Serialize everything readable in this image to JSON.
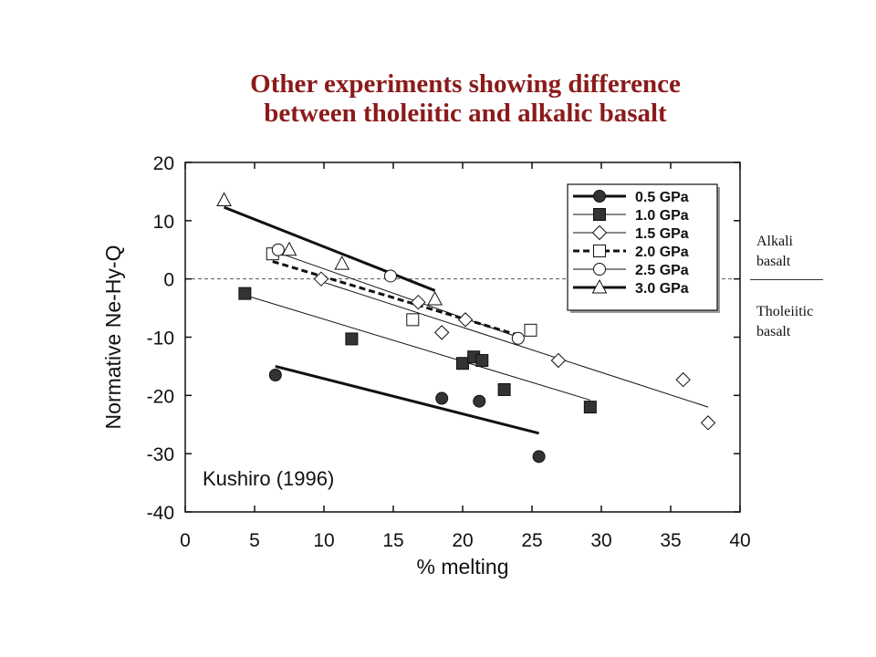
{
  "slide_title": {
    "line1": "Other experiments showing difference",
    "line2": "between tholeiitic and alkalic basalt"
  },
  "side_labels": {
    "upper": [
      "Alkali",
      "basalt"
    ],
    "lower": [
      "Tholeiitic",
      "basalt"
    ]
  },
  "chart_data": {
    "type": "scatter",
    "title": "",
    "xlabel": "% melting",
    "ylabel": "Normative Ne-Hy-Q",
    "xlim": [
      0,
      40
    ],
    "ylim": [
      -40,
      20
    ],
    "xticks": [
      0,
      5,
      10,
      15,
      20,
      25,
      30,
      35,
      40
    ],
    "yticks": [
      20,
      10,
      0,
      -10,
      -20,
      -30,
      -40
    ],
    "reference_line": {
      "y": 0,
      "style": "dashed"
    },
    "annotation": "Kushiro (1996)",
    "legend_position": "top-right",
    "grid": false,
    "series": [
      {
        "name": "0.5 GPa",
        "marker": "circle",
        "fill": "filled",
        "line": "thick-solid",
        "points": [
          [
            6.5,
            -16.5
          ],
          [
            18.5,
            -20.5
          ],
          [
            21.2,
            -21
          ],
          [
            25.5,
            -30.5
          ]
        ],
        "fit": [
          [
            6.5,
            -15
          ],
          [
            25.5,
            -26.5
          ]
        ]
      },
      {
        "name": "1.0 GPa",
        "marker": "square",
        "fill": "filled",
        "line": "thin-solid",
        "points": [
          [
            4.3,
            -2.5
          ],
          [
            12,
            -10.3
          ],
          [
            20,
            -14.5
          ],
          [
            20.8,
            -13.4
          ],
          [
            21.4,
            -14
          ],
          [
            23,
            -19
          ],
          [
            29.2,
            -22
          ]
        ],
        "fit": [
          [
            4.3,
            -2.8
          ],
          [
            29.2,
            -20.8
          ]
        ]
      },
      {
        "name": "1.5 GPa",
        "marker": "diamond",
        "fill": "open",
        "line": "thin-solid",
        "points": [
          [
            9.8,
            0
          ],
          [
            16.8,
            -4
          ],
          [
            18.5,
            -9.2
          ],
          [
            20.2,
            -7
          ],
          [
            26.9,
            -14
          ],
          [
            35.9,
            -17.3
          ],
          [
            37.7,
            -24.7
          ]
        ],
        "fit": [
          [
            9.5,
            -0.2
          ],
          [
            37.7,
            -22
          ]
        ]
      },
      {
        "name": "2.0 GPa",
        "marker": "square",
        "fill": "open",
        "line": "thick-dashed",
        "points": [
          [
            6.3,
            4.3
          ],
          [
            16.4,
            -7
          ],
          [
            24.9,
            -8.8
          ]
        ],
        "fit": [
          [
            6.3,
            3
          ],
          [
            24.2,
            -9.8
          ]
        ]
      },
      {
        "name": "2.5 GPa",
        "marker": "circle",
        "fill": "open",
        "line": "thin-solid",
        "points": [
          [
            6.7,
            5
          ],
          [
            14.8,
            0.5
          ],
          [
            24,
            -10.2
          ]
        ],
        "fit": [
          [
            6.7,
            4.5
          ],
          [
            24,
            -10
          ]
        ]
      },
      {
        "name": "3.0 GPa",
        "marker": "triangle",
        "fill": "open",
        "line": "thick-solid",
        "points": [
          [
            2.8,
            13.5
          ],
          [
            7.5,
            5
          ],
          [
            11.3,
            2.6
          ],
          [
            18,
            -3.5
          ]
        ],
        "fit": [
          [
            2.8,
            12.3
          ],
          [
            18,
            -2
          ]
        ]
      }
    ]
  },
  "colors": {
    "title": "#8b1a1a",
    "ink": "#111111",
    "marker_fill": "#333333"
  }
}
